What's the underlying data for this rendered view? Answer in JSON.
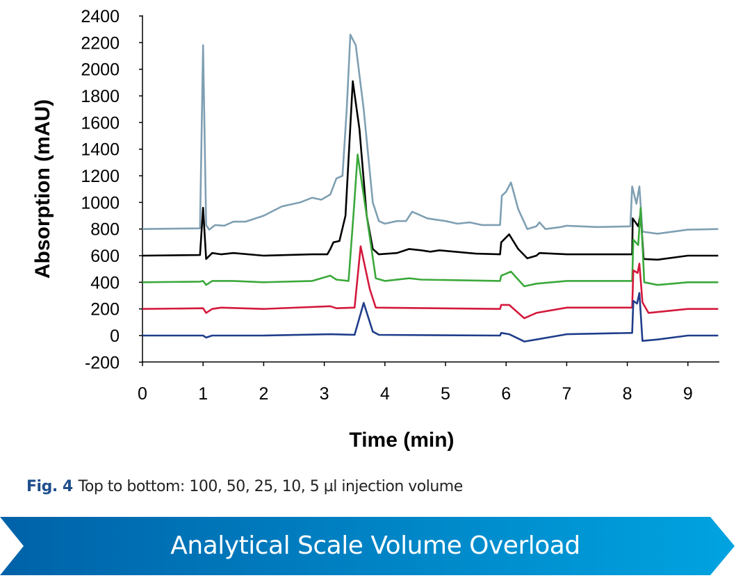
{
  "chart_data": {
    "type": "line",
    "xlabel": "Time (min)",
    "ylabel": "Absorption (mAU)",
    "xlim": [
      0,
      9.5
    ],
    "ylim": [
      -200,
      2400
    ],
    "xticks": [
      "0",
      "1",
      "2",
      "3",
      "4",
      "5",
      "6",
      "7",
      "8",
      "9"
    ],
    "yticks": [
      "-200",
      "0",
      "200",
      "400",
      "600",
      "800",
      "1000",
      "1200",
      "1400",
      "1600",
      "1800",
      "2000",
      "2200",
      "2400"
    ],
    "grid": false,
    "series": [
      {
        "color": "#7f9fb3",
        "points": [
          [
            0,
            800
          ],
          [
            0.95,
            805
          ],
          [
            1.0,
            2180
          ],
          [
            1.05,
            830
          ],
          [
            1.1,
            795
          ],
          [
            1.2,
            830
          ],
          [
            1.35,
            825
          ],
          [
            1.5,
            855
          ],
          [
            1.7,
            855
          ],
          [
            2.0,
            900
          ],
          [
            2.3,
            970
          ],
          [
            2.6,
            1000
          ],
          [
            2.8,
            1035
          ],
          [
            2.95,
            1020
          ],
          [
            3.1,
            1060
          ],
          [
            3.2,
            1180
          ],
          [
            3.3,
            1200
          ],
          [
            3.37,
            1700
          ],
          [
            3.43,
            2260
          ],
          [
            3.52,
            2180
          ],
          [
            3.65,
            1700
          ],
          [
            3.8,
            1000
          ],
          [
            3.9,
            860
          ],
          [
            4.0,
            840
          ],
          [
            4.2,
            860
          ],
          [
            4.35,
            860
          ],
          [
            4.45,
            930
          ],
          [
            4.55,
            910
          ],
          [
            4.7,
            880
          ],
          [
            4.85,
            870
          ],
          [
            5.0,
            860
          ],
          [
            5.2,
            840
          ],
          [
            5.4,
            850
          ],
          [
            5.6,
            830
          ],
          [
            5.9,
            830
          ],
          [
            5.93,
            1050
          ],
          [
            6.0,
            1080
          ],
          [
            6.08,
            1150
          ],
          [
            6.2,
            950
          ],
          [
            6.35,
            800
          ],
          [
            6.5,
            820
          ],
          [
            6.55,
            850
          ],
          [
            6.65,
            800
          ],
          [
            6.9,
            815
          ],
          [
            7.0,
            825
          ],
          [
            7.5,
            815
          ],
          [
            8.05,
            820
          ],
          [
            8.08,
            1120
          ],
          [
            8.15,
            990
          ],
          [
            8.2,
            1120
          ],
          [
            8.25,
            780
          ],
          [
            8.5,
            765
          ],
          [
            9.0,
            795
          ],
          [
            9.5,
            800
          ]
        ]
      },
      {
        "color": "#000000",
        "points": [
          [
            0,
            600
          ],
          [
            0.95,
            605
          ],
          [
            1.0,
            960
          ],
          [
            1.05,
            575
          ],
          [
            1.15,
            620
          ],
          [
            1.3,
            610
          ],
          [
            1.5,
            620
          ],
          [
            2.0,
            600
          ],
          [
            2.8,
            610
          ],
          [
            3.05,
            610
          ],
          [
            3.1,
            650
          ],
          [
            3.15,
            700
          ],
          [
            3.25,
            710
          ],
          [
            3.35,
            900
          ],
          [
            3.47,
            1910
          ],
          [
            3.58,
            1550
          ],
          [
            3.7,
            900
          ],
          [
            3.8,
            650
          ],
          [
            3.9,
            610
          ],
          [
            4.2,
            620
          ],
          [
            4.4,
            650
          ],
          [
            4.6,
            640
          ],
          [
            4.75,
            630
          ],
          [
            4.9,
            640
          ],
          [
            5.5,
            615
          ],
          [
            5.9,
            610
          ],
          [
            5.92,
            700
          ],
          [
            6.05,
            760
          ],
          [
            6.2,
            650
          ],
          [
            6.35,
            580
          ],
          [
            6.5,
            600
          ],
          [
            6.55,
            620
          ],
          [
            7.0,
            610
          ],
          [
            8.08,
            610
          ],
          [
            8.09,
            880
          ],
          [
            8.18,
            820
          ],
          [
            8.22,
            920
          ],
          [
            8.27,
            575
          ],
          [
            8.5,
            570
          ],
          [
            9.0,
            600
          ],
          [
            9.5,
            600
          ]
        ]
      },
      {
        "color": "#3aa83a",
        "points": [
          [
            0,
            400
          ],
          [
            0.95,
            405
          ],
          [
            1.0,
            410
          ],
          [
            1.05,
            380
          ],
          [
            1.15,
            410
          ],
          [
            1.5,
            410
          ],
          [
            2.0,
            400
          ],
          [
            2.8,
            410
          ],
          [
            3.1,
            450
          ],
          [
            3.2,
            420
          ],
          [
            3.4,
            410
          ],
          [
            3.48,
            900
          ],
          [
            3.55,
            1360
          ],
          [
            3.7,
            900
          ],
          [
            3.85,
            430
          ],
          [
            4.0,
            410
          ],
          [
            4.4,
            430
          ],
          [
            4.6,
            420
          ],
          [
            5.9,
            410
          ],
          [
            5.92,
            450
          ],
          [
            6.08,
            480
          ],
          [
            6.3,
            370
          ],
          [
            6.5,
            390
          ],
          [
            7.0,
            410
          ],
          [
            8.08,
            410
          ],
          [
            8.1,
            720
          ],
          [
            8.18,
            680
          ],
          [
            8.22,
            960
          ],
          [
            8.28,
            400
          ],
          [
            8.5,
            380
          ],
          [
            9.0,
            400
          ],
          [
            9.5,
            400
          ]
        ]
      },
      {
        "color": "#d4183c",
        "points": [
          [
            0,
            200
          ],
          [
            1.0,
            205
          ],
          [
            1.05,
            170
          ],
          [
            1.15,
            200
          ],
          [
            1.3,
            210
          ],
          [
            2.0,
            200
          ],
          [
            3.1,
            220
          ],
          [
            3.2,
            205
          ],
          [
            3.5,
            210
          ],
          [
            3.6,
            670
          ],
          [
            3.75,
            350
          ],
          [
            3.85,
            210
          ],
          [
            5.9,
            200
          ],
          [
            5.92,
            230
          ],
          [
            6.05,
            230
          ],
          [
            6.3,
            130
          ],
          [
            6.5,
            170
          ],
          [
            7.0,
            210
          ],
          [
            8.08,
            210
          ],
          [
            8.1,
            490
          ],
          [
            8.17,
            470
          ],
          [
            8.2,
            540
          ],
          [
            8.25,
            250
          ],
          [
            8.35,
            170
          ],
          [
            9.0,
            200
          ],
          [
            9.5,
            200
          ]
        ]
      },
      {
        "color": "#1f3d8a",
        "points": [
          [
            0,
            0
          ],
          [
            1.0,
            0
          ],
          [
            1.05,
            -15
          ],
          [
            1.15,
            0
          ],
          [
            2.0,
            0
          ],
          [
            3.1,
            10
          ],
          [
            3.5,
            5
          ],
          [
            3.65,
            245
          ],
          [
            3.8,
            30
          ],
          [
            3.9,
            5
          ],
          [
            5.9,
            0
          ],
          [
            5.92,
            20
          ],
          [
            6.05,
            10
          ],
          [
            6.3,
            -45
          ],
          [
            6.5,
            -30
          ],
          [
            7.0,
            10
          ],
          [
            8.08,
            20
          ],
          [
            8.1,
            260
          ],
          [
            8.16,
            240
          ],
          [
            8.2,
            320
          ],
          [
            8.25,
            -40
          ],
          [
            8.5,
            -30
          ],
          [
            9.0,
            0
          ],
          [
            9.5,
            0
          ]
        ]
      }
    ]
  },
  "caption": {
    "fig": "Fig. 4",
    "text": "Top to bottom: 100, 50, 25, 10, 5 µl injection volume"
  },
  "banner": {
    "text": "Analytical Scale Volume Overload",
    "color_start": "#0062a8",
    "color_end": "#00a3e0"
  }
}
